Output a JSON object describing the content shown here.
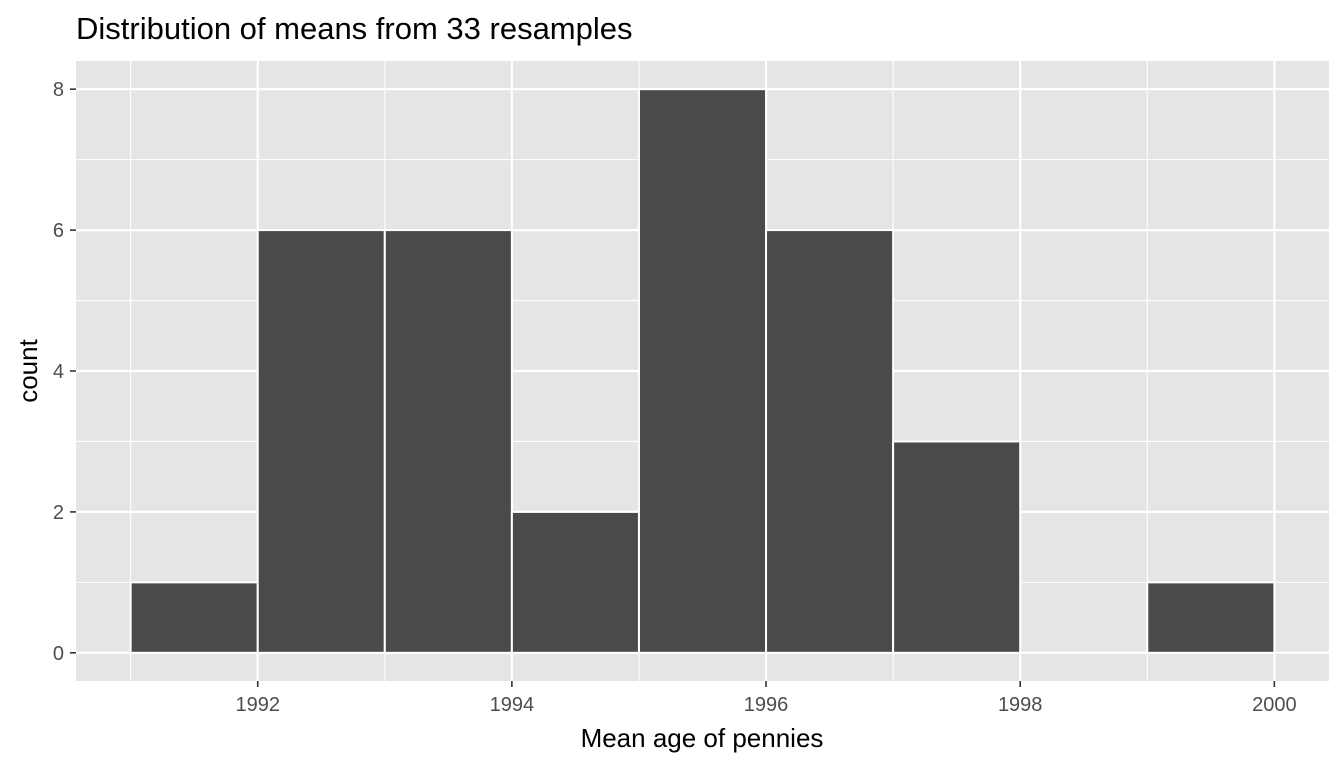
{
  "chart_data": {
    "type": "bar",
    "subtype": "histogram",
    "title": "Distribution of means from 33 resamples",
    "xlabel": "Mean age of pennies",
    "ylabel": "count",
    "bins": [
      {
        "x0": 1991,
        "x1": 1992,
        "count": 1
      },
      {
        "x0": 1992,
        "x1": 1993,
        "count": 6
      },
      {
        "x0": 1993,
        "x1": 1994,
        "count": 6
      },
      {
        "x0": 1994,
        "x1": 1995,
        "count": 2
      },
      {
        "x0": 1995,
        "x1": 1996,
        "count": 8
      },
      {
        "x0": 1996,
        "x1": 1997,
        "count": 6
      },
      {
        "x0": 1997,
        "x1": 1998,
        "count": 3
      },
      {
        "x0": 1998,
        "x1": 1999,
        "count": 0
      },
      {
        "x0": 1999,
        "x1": 2000,
        "count": 1
      }
    ],
    "xticks": [
      1992,
      1994,
      1996,
      1998,
      2000
    ],
    "yticks": [
      0,
      2,
      4,
      6,
      8
    ],
    "xlim": [
      1990.57,
      2000.43
    ],
    "ylim": [
      -0.4,
      8.4
    ],
    "grid": true,
    "legend": "none",
    "colors": {
      "panel_background": "#e5e5e5",
      "grid": "#ffffff",
      "bar_fill": "#4a4a4a",
      "bar_outline": "#ffffff",
      "tick_text": "#4d4d4d",
      "tick_mark": "#333333",
      "text": "#000000"
    }
  }
}
